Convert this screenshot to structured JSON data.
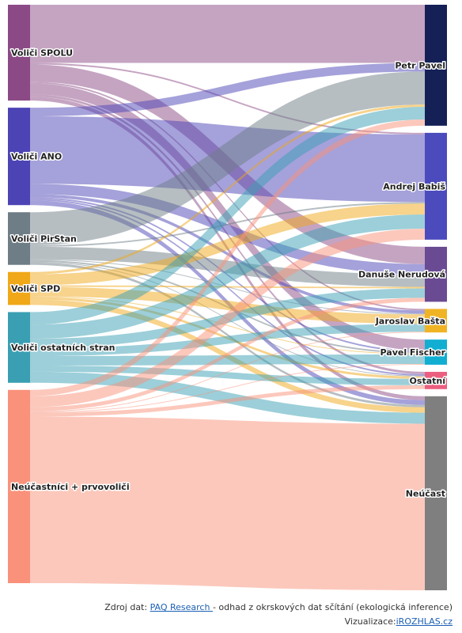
{
  "chart_data": {
    "type": "sankey",
    "sources": [
      {
        "id": "spolu",
        "label": "Voliči SPOLU",
        "color": "#8b4a86"
      },
      {
        "id": "ano",
        "label": "Voliči ANO",
        "color": "#4c43b5"
      },
      {
        "id": "pirstan",
        "label": "Voliči PirStan",
        "color": "#6e7d86"
      },
      {
        "id": "spd",
        "label": "Voliči SPD",
        "color": "#f0a818"
      },
      {
        "id": "ostatni_strany",
        "label": "Voliči ostatních stran",
        "color": "#3a9fb3"
      },
      {
        "id": "neucastnici",
        "label": "Neúčastníci + prvovoliči",
        "color": "#fa917a"
      }
    ],
    "targets": [
      {
        "id": "pavel",
        "label": "Petr Pavel",
        "color": "#152057"
      },
      {
        "id": "babis",
        "label": "Andrej Babiš",
        "color": "#4c4bbd"
      },
      {
        "id": "nerudova",
        "label": "Danuše Nerudová",
        "color": "#6a4a92"
      },
      {
        "id": "basta",
        "label": "Jaroslav Bašta",
        "color": "#f0b323"
      },
      {
        "id": "fischer",
        "label": "Pavel Fischer",
        "color": "#11aed2"
      },
      {
        "id": "ostatni",
        "label": "Ostatní",
        "color": "#ec5e7f"
      },
      {
        "id": "neucast",
        "label": "Neúčast",
        "color": "#7f7f7f"
      }
    ],
    "links": [
      {
        "source": "spolu",
        "target": "pavel",
        "value": 74
      },
      {
        "source": "spolu",
        "target": "babis",
        "value": 2
      },
      {
        "source": "spolu",
        "target": "nerudova",
        "value": 22
      },
      {
        "source": "spolu",
        "target": "basta",
        "value": 2
      },
      {
        "source": "spolu",
        "target": "fischer",
        "value": 14
      },
      {
        "source": "spolu",
        "target": "ostatni",
        "value": 3
      },
      {
        "source": "spolu",
        "target": "neucast",
        "value": 5
      },
      {
        "source": "ano",
        "target": "pavel",
        "value": 11
      },
      {
        "source": "ano",
        "target": "babis",
        "value": 86
      },
      {
        "source": "ano",
        "target": "nerudova",
        "value": 13
      },
      {
        "source": "ano",
        "target": "basta",
        "value": 4
      },
      {
        "source": "ano",
        "target": "fischer",
        "value": 2
      },
      {
        "source": "ano",
        "target": "ostatni",
        "value": 2
      },
      {
        "source": "ano",
        "target": "neucast",
        "value": 6
      },
      {
        "source": "pirstan",
        "target": "pavel",
        "value": 42
      },
      {
        "source": "pirstan",
        "target": "babis",
        "value": 2
      },
      {
        "source": "pirstan",
        "target": "nerudova",
        "value": 16
      },
      {
        "source": "pirstan",
        "target": "basta",
        "value": 1
      },
      {
        "source": "pirstan",
        "target": "fischer",
        "value": 2
      },
      {
        "source": "pirstan",
        "target": "ostatni",
        "value": 1
      },
      {
        "source": "pirstan",
        "target": "neucast",
        "value": 3
      },
      {
        "source": "spd",
        "target": "pavel",
        "value": 3
      },
      {
        "source": "spd",
        "target": "babis",
        "value": 14
      },
      {
        "source": "spd",
        "target": "nerudova",
        "value": 2
      },
      {
        "source": "spd",
        "target": "basta",
        "value": 12
      },
      {
        "source": "spd",
        "target": "fischer",
        "value": 1
      },
      {
        "source": "spd",
        "target": "ostatni",
        "value": 3
      },
      {
        "source": "spd",
        "target": "neucast",
        "value": 7
      },
      {
        "source": "ostatni_strany",
        "target": "pavel",
        "value": 16
      },
      {
        "source": "ostatni_strany",
        "target": "babis",
        "value": 18
      },
      {
        "source": "ostatni_strany",
        "target": "nerudova",
        "value": 12
      },
      {
        "source": "ostatni_strany",
        "target": "basta",
        "value": 10
      },
      {
        "source": "ostatni_strany",
        "target": "fischer",
        "value": 12
      },
      {
        "source": "ostatni_strany",
        "target": "ostatni",
        "value": 8
      },
      {
        "source": "ostatni_strany",
        "target": "neucast",
        "value": 14
      },
      {
        "source": "neucastnici",
        "target": "pavel",
        "value": 8
      },
      {
        "source": "neucastnici",
        "target": "babis",
        "value": 14
      },
      {
        "source": "neucastnici",
        "target": "nerudova",
        "value": 5
      },
      {
        "source": "neucastnici",
        "target": "basta",
        "value": 1
      },
      {
        "source": "neucastnici",
        "target": "fischer",
        "value": 1
      },
      {
        "source": "neucastnici",
        "target": "ostatni",
        "value": 5
      },
      {
        "source": "neucastnici",
        "target": "neucast",
        "value": 212
      }
    ]
  },
  "footer": {
    "source_prefix": "Zdroj dat: ",
    "source_link": "PAQ Research ",
    "source_suffix": "- odhad z okrskových dat sčítání (ekologická inference)",
    "viz_prefix": "Vizualizace:",
    "viz_link": "iROZHLAS.cz"
  }
}
